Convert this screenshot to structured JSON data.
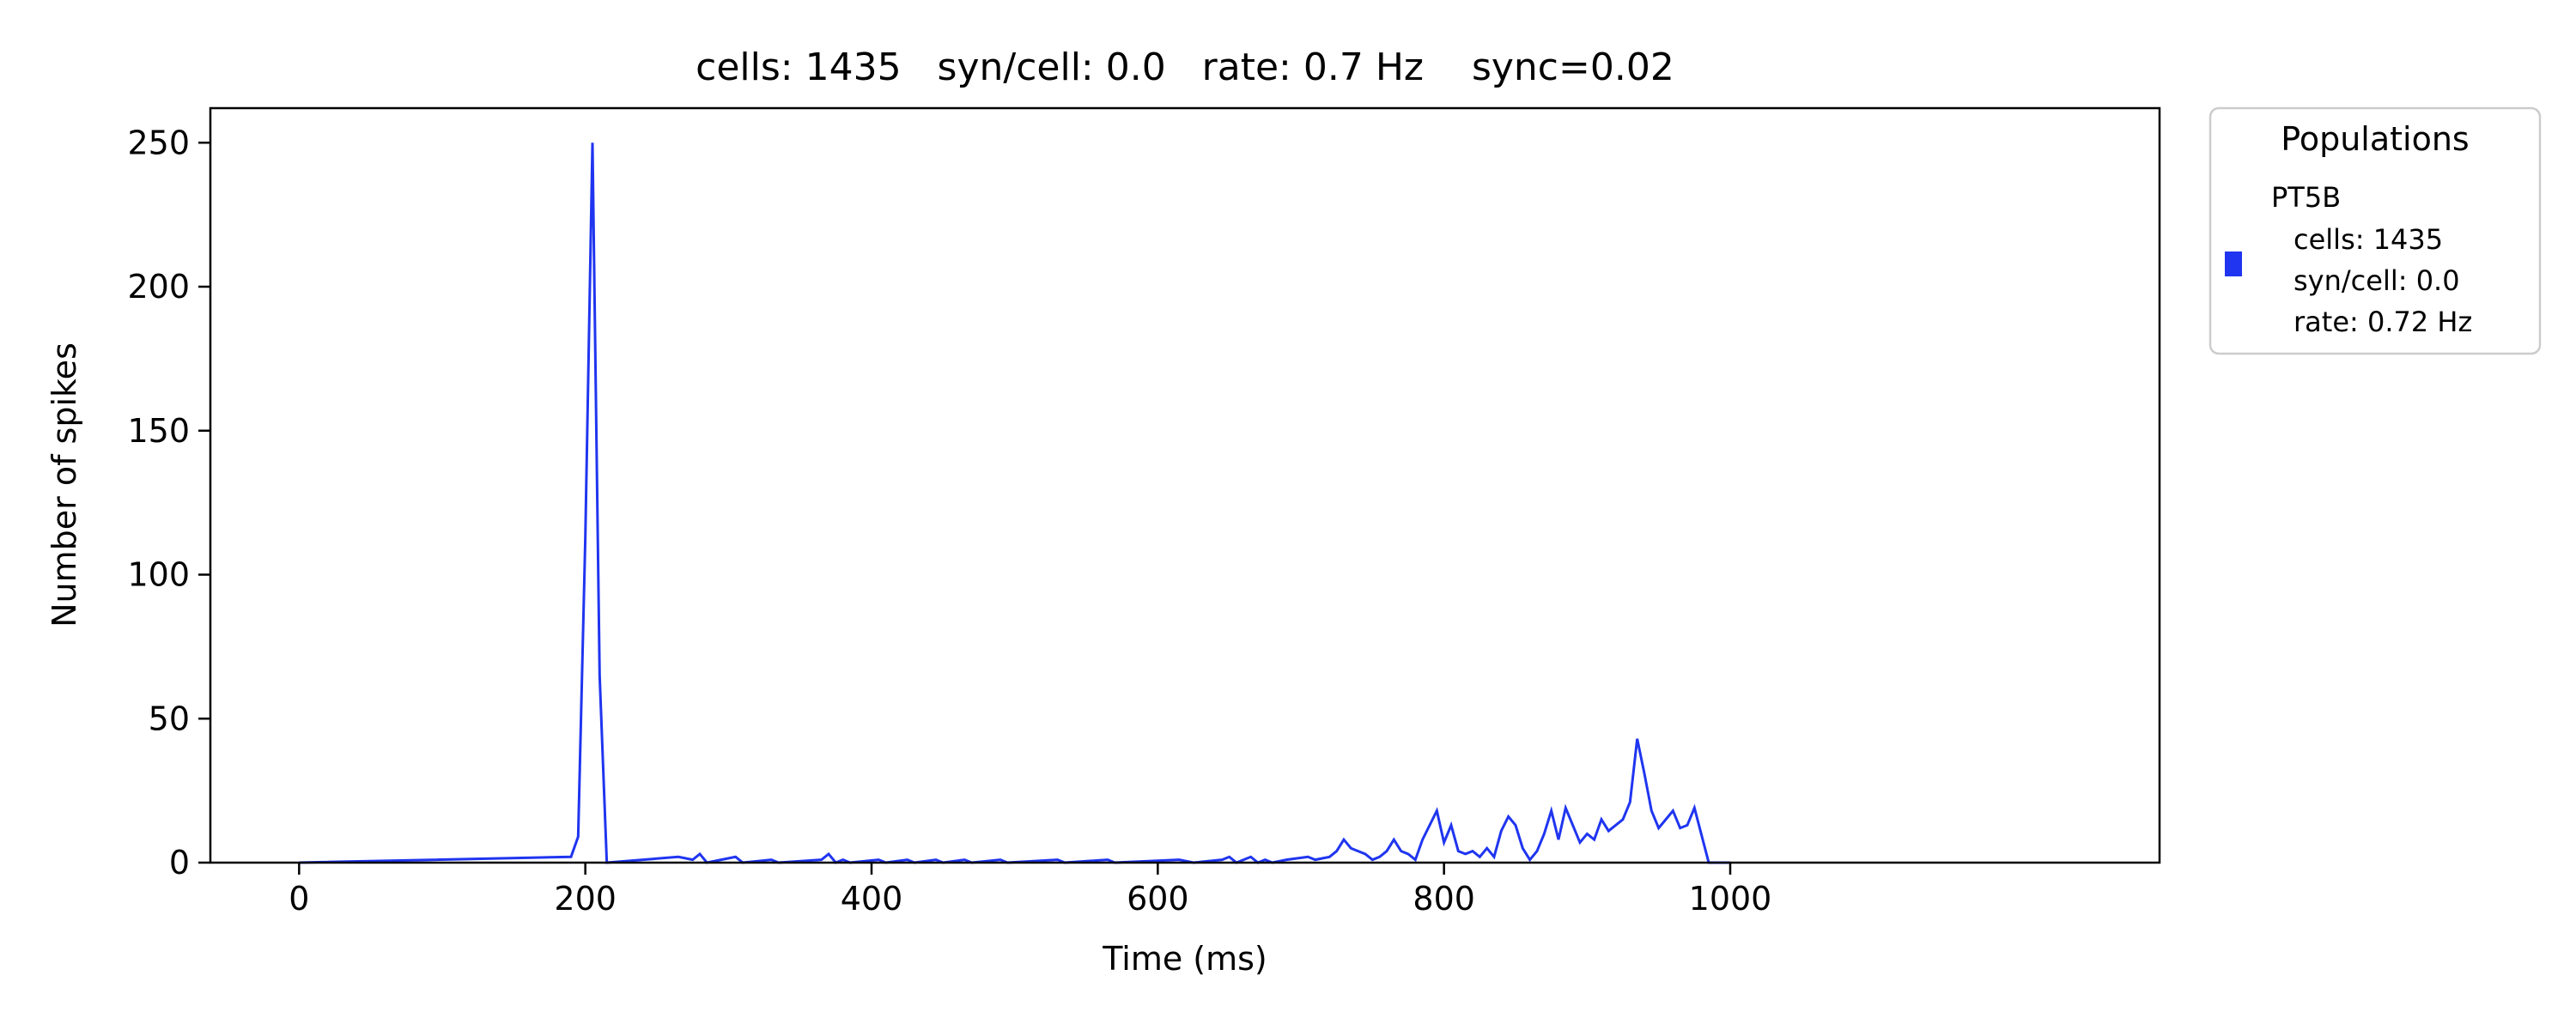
{
  "chart_data": {
    "type": "histogram",
    "title": "cells: 1435   syn/cell: 0.0   rate: 0.7 Hz    sync=0.02",
    "xlabel": "Time (ms)",
    "ylabel": "Number of spikes",
    "xlim": [
      -62,
      1300
    ],
    "ylim": [
      0,
      262
    ],
    "x_ticks": [
      0,
      200,
      400,
      600,
      800,
      1000
    ],
    "y_ticks": [
      0,
      50,
      100,
      150,
      200,
      250
    ],
    "bin_width_ms": 5,
    "grid": false,
    "legend": {
      "title": "Populations",
      "placement": "outside-right",
      "entries": [
        {
          "color": "#1f35f0",
          "lines": [
            "PT5B",
            "cells: 1435",
            "syn/cell: 0.0",
            "rate: 0.72 Hz"
          ]
        }
      ]
    },
    "series": [
      {
        "color": "#1f35f0",
        "bins": [
          [
            190,
            2
          ],
          [
            195,
            9
          ],
          [
            200,
            113
          ],
          [
            205,
            250
          ],
          [
            210,
            65
          ],
          [
            215,
            0
          ],
          [
            265,
            2
          ],
          [
            270,
            2
          ],
          [
            275,
            1
          ],
          [
            280,
            3
          ],
          [
            285,
            0
          ],
          [
            305,
            2
          ],
          [
            310,
            0
          ],
          [
            330,
            1
          ],
          [
            335,
            0
          ],
          [
            365,
            1
          ],
          [
            370,
            3
          ],
          [
            375,
            0
          ],
          [
            380,
            1
          ],
          [
            385,
            0
          ],
          [
            405,
            1
          ],
          [
            410,
            0
          ],
          [
            425,
            1
          ],
          [
            430,
            0
          ],
          [
            445,
            1
          ],
          [
            450,
            0
          ],
          [
            465,
            1
          ],
          [
            470,
            0
          ],
          [
            490,
            1
          ],
          [
            495,
            0
          ],
          [
            530,
            1
          ],
          [
            535,
            0
          ],
          [
            565,
            1
          ],
          [
            570,
            0
          ],
          [
            615,
            1
          ],
          [
            620,
            1
          ],
          [
            625,
            0
          ],
          [
            645,
            1
          ],
          [
            650,
            2
          ],
          [
            655,
            0
          ],
          [
            665,
            2
          ],
          [
            670,
            0
          ],
          [
            675,
            1
          ],
          [
            680,
            0
          ],
          [
            690,
            1
          ],
          [
            695,
            1
          ],
          [
            700,
            1
          ],
          [
            705,
            2
          ],
          [
            710,
            1
          ],
          [
            715,
            1
          ],
          [
            720,
            2
          ],
          [
            725,
            4
          ],
          [
            730,
            8
          ],
          [
            735,
            5
          ],
          [
            740,
            4
          ],
          [
            745,
            3
          ],
          [
            750,
            1
          ],
          [
            755,
            2
          ],
          [
            760,
            4
          ],
          [
            765,
            8
          ],
          [
            770,
            4
          ],
          [
            775,
            3
          ],
          [
            780,
            1
          ],
          [
            785,
            8
          ],
          [
            790,
            8
          ],
          [
            795,
            18
          ],
          [
            800,
            7
          ],
          [
            805,
            13
          ],
          [
            810,
            4
          ],
          [
            815,
            3
          ],
          [
            820,
            4
          ],
          [
            825,
            2
          ],
          [
            830,
            5
          ],
          [
            835,
            2
          ],
          [
            840,
            11
          ],
          [
            845,
            16
          ],
          [
            850,
            13
          ],
          [
            855,
            5
          ],
          [
            860,
            1
          ],
          [
            865,
            4
          ],
          [
            870,
            10
          ],
          [
            875,
            18
          ],
          [
            880,
            8
          ],
          [
            885,
            19
          ],
          [
            890,
            13
          ],
          [
            895,
            7
          ],
          [
            900,
            10
          ],
          [
            905,
            8
          ],
          [
            910,
            15
          ],
          [
            915,
            11
          ],
          [
            920,
            11
          ],
          [
            925,
            15
          ],
          [
            930,
            21
          ],
          [
            935,
            43
          ],
          [
            940,
            31
          ],
          [
            945,
            18
          ],
          [
            950,
            12
          ],
          [
            955,
            12
          ],
          [
            960,
            18
          ],
          [
            965,
            12
          ],
          [
            970,
            13
          ],
          [
            975,
            19
          ],
          [
            980,
            19
          ],
          [
            985,
            0
          ]
        ]
      }
    ]
  }
}
